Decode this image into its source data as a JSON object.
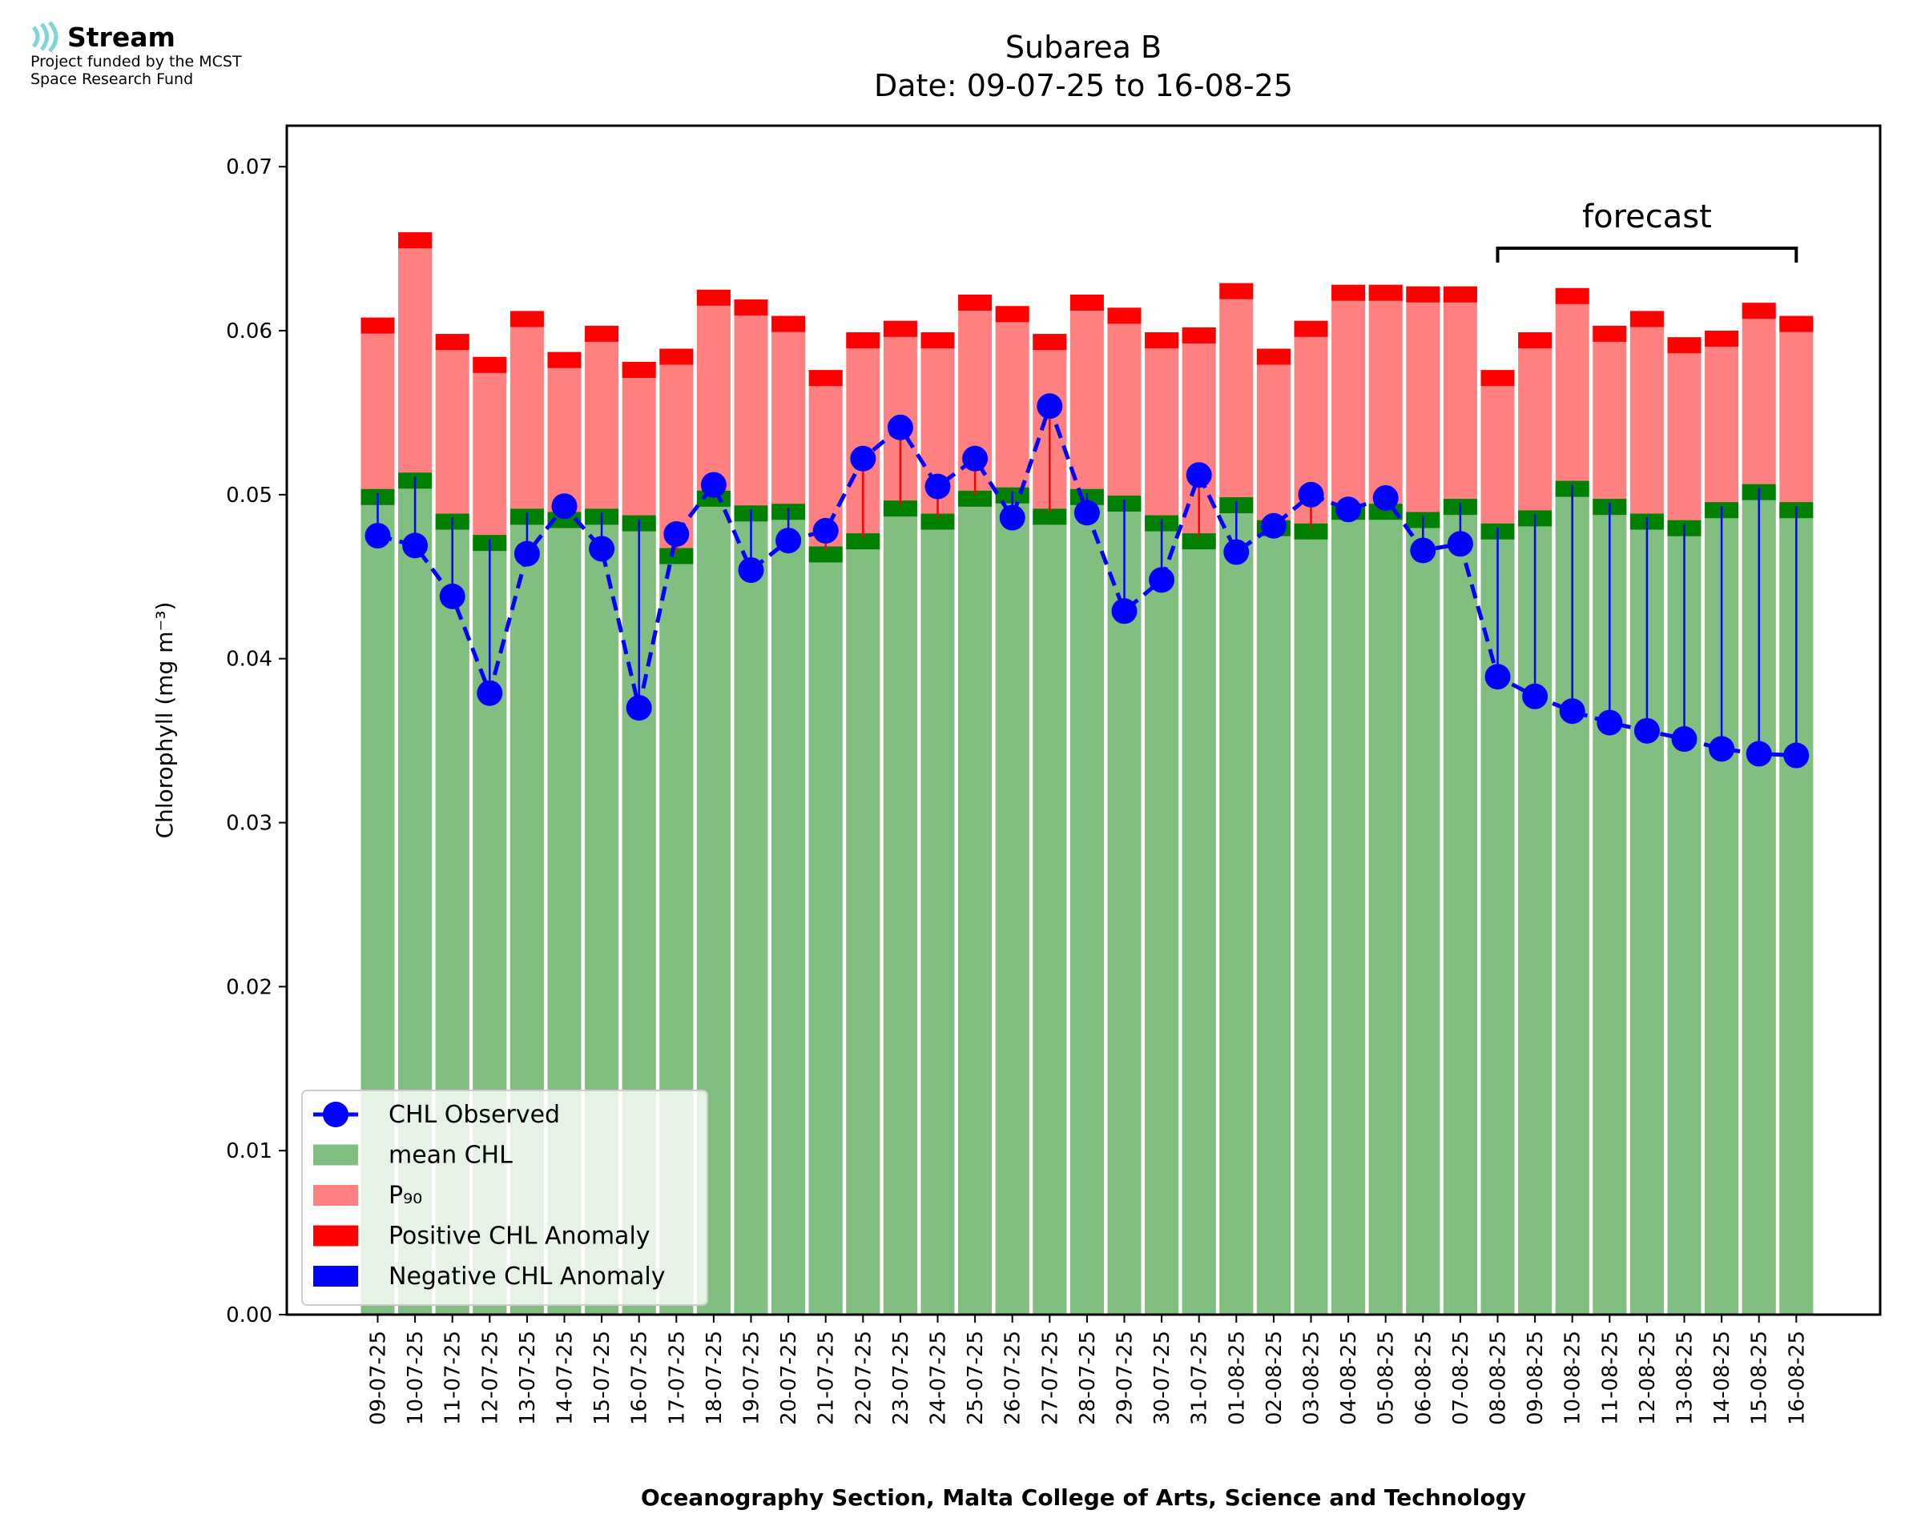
{
  "logo": {
    "name": "Stream",
    "line1": "Project funded by the MCST",
    "line2": "Space Research Fund"
  },
  "colors": {
    "mean": "#80bf80",
    "p90": "#ff8080",
    "positive": "#ff0000",
    "negative": "#0000ff",
    "observed": "#0000ff",
    "edge_band": "#008000"
  },
  "chart_data": {
    "type": "bar",
    "title": "Subarea B",
    "subtitle": "Date: 09-07-25 to 16-08-25",
    "xlabel": "Oceanography Section, Malta College of Arts, Science and Technology",
    "ylabel": "Chlorophyll (mg m⁻³)",
    "ylim": [
      0,
      0.0725
    ],
    "yticks": [
      "0.00",
      "0.01",
      "0.02",
      "0.03",
      "0.04",
      "0.05",
      "0.06",
      "0.07"
    ],
    "categories": [
      "09-07-25",
      "10-07-25",
      "11-07-25",
      "12-07-25",
      "13-07-25",
      "14-07-25",
      "15-07-25",
      "16-07-25",
      "17-07-25",
      "18-07-25",
      "19-07-25",
      "20-07-25",
      "21-07-25",
      "22-07-25",
      "23-07-25",
      "24-07-25",
      "25-07-25",
      "26-07-25",
      "27-07-25",
      "28-07-25",
      "29-07-25",
      "30-07-25",
      "31-07-25",
      "01-08-25",
      "02-08-25",
      "03-08-25",
      "04-08-25",
      "05-08-25",
      "06-08-25",
      "07-08-25",
      "08-08-25",
      "09-08-25",
      "10-08-25",
      "11-08-25",
      "12-08-25",
      "13-08-25",
      "14-08-25",
      "15-08-25",
      "16-08-25"
    ],
    "series": [
      {
        "name": "mean CHL",
        "values": [
          0.0501,
          0.0511,
          0.0486,
          0.0473,
          0.0489,
          0.0487,
          0.0489,
          0.0485,
          0.0465,
          0.05,
          0.0491,
          0.0492,
          0.0466,
          0.0474,
          0.0494,
          0.0486,
          0.05,
          0.0502,
          0.0489,
          0.0501,
          0.0497,
          0.0485,
          0.0474,
          0.0496,
          0.0482,
          0.048,
          0.0492,
          0.0492,
          0.0487,
          0.0495,
          0.048,
          0.0488,
          0.0506,
          0.0495,
          0.0486,
          0.0482,
          0.0493,
          0.0504,
          0.0493
        ]
      },
      {
        "name": "P₉₀",
        "values": [
          0.0608,
          0.066,
          0.0598,
          0.0584,
          0.0612,
          0.0587,
          0.0603,
          0.0581,
          0.0589,
          0.0625,
          0.0619,
          0.0609,
          0.0576,
          0.0599,
          0.0606,
          0.0599,
          0.0622,
          0.0615,
          0.0598,
          0.0622,
          0.0614,
          0.0599,
          0.0602,
          0.0629,
          0.0589,
          0.0606,
          0.0628,
          0.0628,
          0.0627,
          0.0627,
          0.0576,
          0.0599,
          0.0626,
          0.0603,
          0.0612,
          0.0596,
          0.06,
          0.0617,
          0.0609
        ]
      },
      {
        "name": "CHL Observed",
        "values": [
          0.0475,
          0.0469,
          0.0438,
          0.0379,
          0.0464,
          0.0493,
          0.0467,
          0.037,
          0.0476,
          0.0506,
          0.0454,
          0.0472,
          0.0478,
          0.0522,
          0.0541,
          0.0505,
          0.0522,
          0.0486,
          0.0554,
          0.0489,
          0.0429,
          0.0448,
          0.0512,
          0.0465,
          0.0481,
          0.05,
          0.0491,
          0.0498,
          0.0466,
          0.047,
          0.0389,
          0.0377,
          0.0368,
          0.0361,
          0.0356,
          0.0351,
          0.0345,
          0.0342,
          0.0341
        ]
      }
    ],
    "forecast_label": "forecast",
    "forecast_range": [
      "08-08-25",
      "16-08-25"
    ],
    "legend": {
      "placement": "lower-left",
      "entries": [
        "CHL Observed",
        "mean CHL",
        "P₉₀",
        "Positive CHL Anomaly",
        "Negative CHL Anomaly"
      ]
    },
    "grid": false
  }
}
